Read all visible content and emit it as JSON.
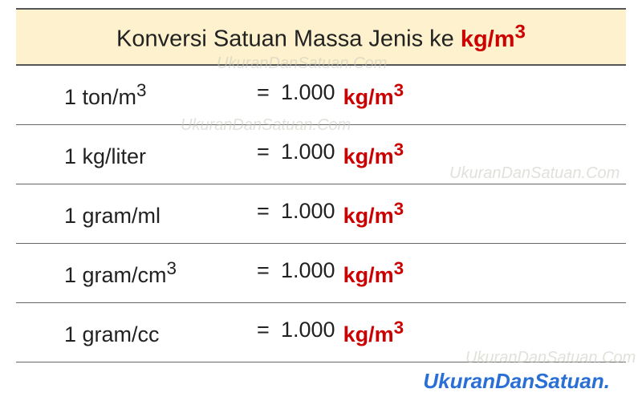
{
  "header": {
    "title_prefix": "Konversi Satuan Massa Jenis ke ",
    "title_unit_base": "kg/m",
    "title_unit_sup": "3",
    "background_color": "#fdf2cd",
    "text_color": "#222222",
    "unit_color": "#cc0000",
    "fontsize": 29
  },
  "rows": [
    {
      "from_base": "1 ton/m",
      "from_sup": "3",
      "equals": "=",
      "value": "1.000",
      "to_base": "kg/m",
      "to_sup": "3"
    },
    {
      "from_base": "1 kg/liter",
      "from_sup": "",
      "equals": "=",
      "value": "1.000",
      "to_base": "kg/m",
      "to_sup": "3"
    },
    {
      "from_base": "1 gram/ml",
      "from_sup": "",
      "equals": "=",
      "value": "1.000",
      "to_base": "kg/m",
      "to_sup": "3"
    },
    {
      "from_base": "1 gram/cm",
      "from_sup": "3",
      "equals": "=",
      "value": "1.000",
      "to_base": "kg/m",
      "to_sup": "3"
    },
    {
      "from_base": "1 gram/cc",
      "from_sup": "",
      "equals": "=",
      "value": "1.000",
      "to_base": "kg/m",
      "to_sup": "3"
    }
  ],
  "footer": {
    "text": "UkuranDanSatuan.",
    "color": "#2a6fd6",
    "fontsize": 26
  },
  "watermark": {
    "text": "UkuranDanSatuan.Com",
    "color": "rgba(200,200,190,0.55)"
  },
  "styling": {
    "border_color": "#555555",
    "row_fontsize": 27,
    "value_color": "#222222",
    "unit_color": "#cc0000",
    "background": "#ffffff"
  }
}
